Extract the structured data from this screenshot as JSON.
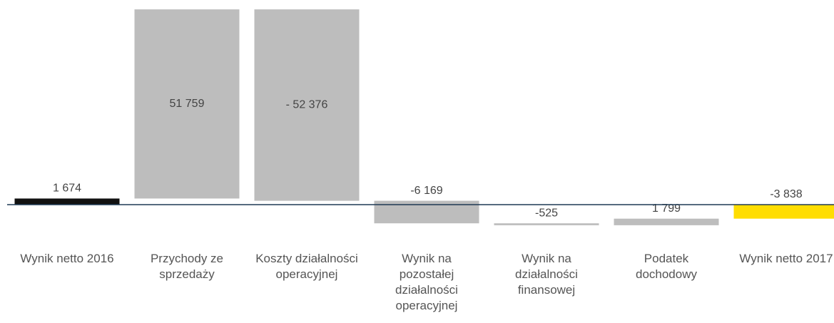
{
  "chart_data": {
    "type": "waterfall",
    "categories": [
      "Wynik netto 2016",
      "Przychody ze sprzedaży",
      "Koszty działalności operacyjnej",
      "Wynik na pozostałej działalności operacyjnej",
      "Wynik na działalności finansowej",
      "Podatek dochodowy",
      "Wynik netto 2017"
    ],
    "values": [
      1674,
      51759,
      -52376,
      -6169,
      -525,
      1799,
      -3838
    ],
    "value_labels": [
      "1 674",
      "51 759",
      "- 52 376",
      "-6 169",
      "-525",
      "1 799",
      "-3 838"
    ],
    "total": [
      true,
      false,
      false,
      false,
      false,
      false,
      true
    ],
    "colors": [
      "#111111",
      "#bdbdbd",
      "#bdbdbd",
      "#bdbdbd",
      "#bdbdbd",
      "#bdbdbd",
      "#ffdd00"
    ],
    "ylim": [
      -12000,
      56000
    ],
    "baseline_color": "#1f3a55"
  }
}
